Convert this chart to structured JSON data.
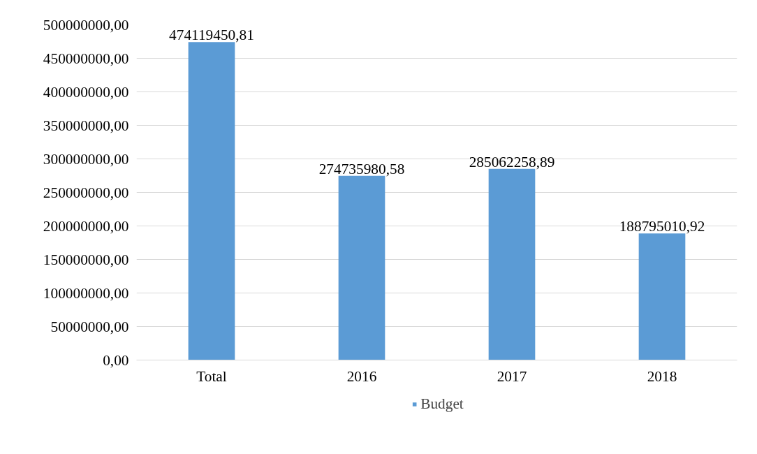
{
  "chart_data": {
    "type": "bar",
    "categories": [
      "Total",
      "2016",
      "2017",
      "2018"
    ],
    "series": [
      {
        "name": "Budget",
        "color": "#5b9bd5",
        "values": [
          474119450.81,
          274735980.58,
          285062258.89,
          188795010.92
        ],
        "value_labels": [
          "474119450,81",
          "274735980,58",
          "285062258,89",
          "188795010,92"
        ]
      }
    ],
    "ylim": [
      0,
      500000000
    ],
    "yticks": [
      {
        "value": 0,
        "label": "0,00"
      },
      {
        "value": 50000000,
        "label": "50000000,00"
      },
      {
        "value": 100000000,
        "label": "100000000,00"
      },
      {
        "value": 150000000,
        "label": "150000000,00"
      },
      {
        "value": 200000000,
        "label": "200000000,00"
      },
      {
        "value": 250000000,
        "label": "250000000,00"
      },
      {
        "value": 300000000,
        "label": "300000000,00"
      },
      {
        "value": 350000000,
        "label": "350000000,00"
      },
      {
        "value": 400000000,
        "label": "400000000,00"
      },
      {
        "value": 450000000,
        "label": "450000000,00"
      },
      {
        "value": 500000000,
        "label": "500000000,00"
      }
    ],
    "grid": "y",
    "legend": "bottom"
  }
}
